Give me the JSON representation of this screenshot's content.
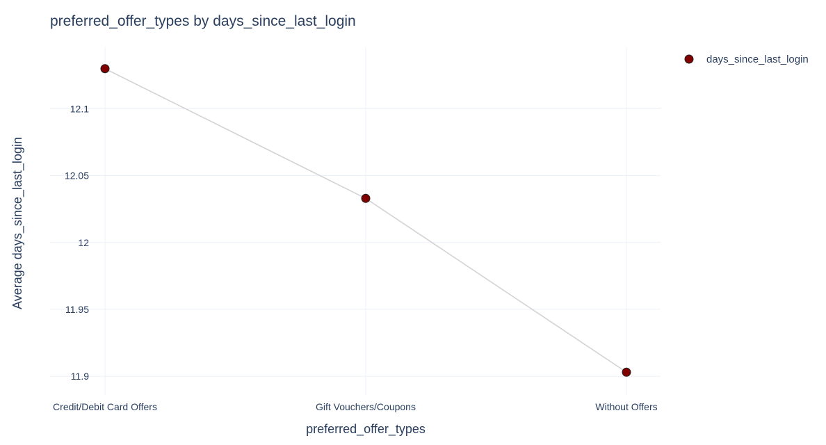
{
  "chart_data": {
    "type": "line",
    "title": "preferred_offer_types by days_since_last_login",
    "xlabel": "preferred_offer_types",
    "ylabel": "Average days_since_last_login",
    "categories": [
      "Credit/Debit Card Offers",
      "Gift Vouchers/Coupons",
      "Without Offers"
    ],
    "series": [
      {
        "name": "days_since_last_login",
        "values": [
          12.13,
          12.033,
          11.903
        ],
        "marker_color": "#800000",
        "marker_outline": "#222222",
        "line_color": "#d3d3d3"
      }
    ],
    "ylim": [
      11.886,
      12.146
    ],
    "yticks": [
      11.9,
      11.95,
      12,
      12.05,
      12.1
    ],
    "ytick_labels": [
      "11.9",
      "11.95",
      "12",
      "12.05",
      "12.1"
    ],
    "grid": true,
    "legend": "top-right"
  }
}
